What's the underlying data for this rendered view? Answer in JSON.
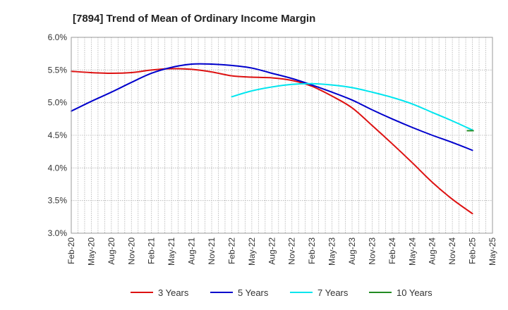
{
  "chart_data": {
    "type": "line",
    "title": "[7894]  Trend of Mean of Ordinary Income Margin",
    "xlabel": "",
    "ylabel": "",
    "ylim": [
      3.0,
      6.0
    ],
    "yticks": [
      "3.0%",
      "3.5%",
      "4.0%",
      "4.5%",
      "5.0%",
      "5.5%",
      "6.0%"
    ],
    "ytick_values": [
      3.0,
      3.5,
      4.0,
      4.5,
      5.0,
      5.5,
      6.0
    ],
    "x_labels": [
      "Feb-20",
      "May-20",
      "Aug-20",
      "Nov-20",
      "Feb-21",
      "May-21",
      "Aug-21",
      "Nov-21",
      "Feb-22",
      "May-22",
      "Aug-22",
      "Nov-22",
      "Feb-23",
      "May-23",
      "Aug-23",
      "Nov-23",
      "Feb-24",
      "May-24",
      "Aug-24",
      "Nov-24",
      "Feb-25",
      "May-25"
    ],
    "grid": true,
    "legend_position": "bottom",
    "series": [
      {
        "name": "3 Years",
        "color": "#dd1111",
        "x": [
          "Feb-20",
          "May-20",
          "Aug-20",
          "Nov-20",
          "Feb-21",
          "May-21",
          "Aug-21",
          "Nov-21",
          "Feb-22",
          "May-22",
          "Aug-22",
          "Nov-22",
          "Feb-23",
          "May-23",
          "Aug-23",
          "Nov-23",
          "Feb-24",
          "May-24",
          "Aug-24",
          "Nov-24",
          "Feb-25"
        ],
        "values": [
          5.48,
          5.46,
          5.45,
          5.46,
          5.5,
          5.52,
          5.51,
          5.47,
          5.41,
          5.39,
          5.38,
          5.34,
          5.25,
          5.1,
          4.92,
          4.65,
          4.37,
          4.08,
          3.78,
          3.52,
          3.3
        ]
      },
      {
        "name": "5 Years",
        "color": "#0000cc",
        "x": [
          "Feb-20",
          "May-20",
          "Aug-20",
          "Nov-20",
          "Feb-21",
          "May-21",
          "Aug-21",
          "Nov-21",
          "Feb-22",
          "May-22",
          "Aug-22",
          "Nov-22",
          "Feb-23",
          "May-23",
          "Aug-23",
          "Nov-23",
          "Feb-24",
          "May-24",
          "Aug-24",
          "Nov-24",
          "Feb-25"
        ],
        "values": [
          4.87,
          5.02,
          5.16,
          5.31,
          5.45,
          5.54,
          5.59,
          5.59,
          5.57,
          5.53,
          5.45,
          5.37,
          5.27,
          5.16,
          5.04,
          4.89,
          4.75,
          4.62,
          4.5,
          4.39,
          4.27
        ]
      },
      {
        "name": "7 Years",
        "color": "#00e5ee",
        "x": [
          "Feb-22",
          "May-22",
          "Aug-22",
          "Nov-22",
          "Feb-23",
          "May-23",
          "Aug-23",
          "Nov-23",
          "Feb-24",
          "May-24",
          "Aug-24",
          "Nov-24",
          "Feb-25"
        ],
        "values": [
          5.09,
          5.18,
          5.24,
          5.28,
          5.29,
          5.27,
          5.23,
          5.16,
          5.08,
          4.98,
          4.85,
          4.72,
          4.58
        ]
      },
      {
        "name": "10 Years",
        "color": "#228b22",
        "x": [
          "Feb-25"
        ],
        "values": [
          4.57
        ]
      }
    ]
  }
}
